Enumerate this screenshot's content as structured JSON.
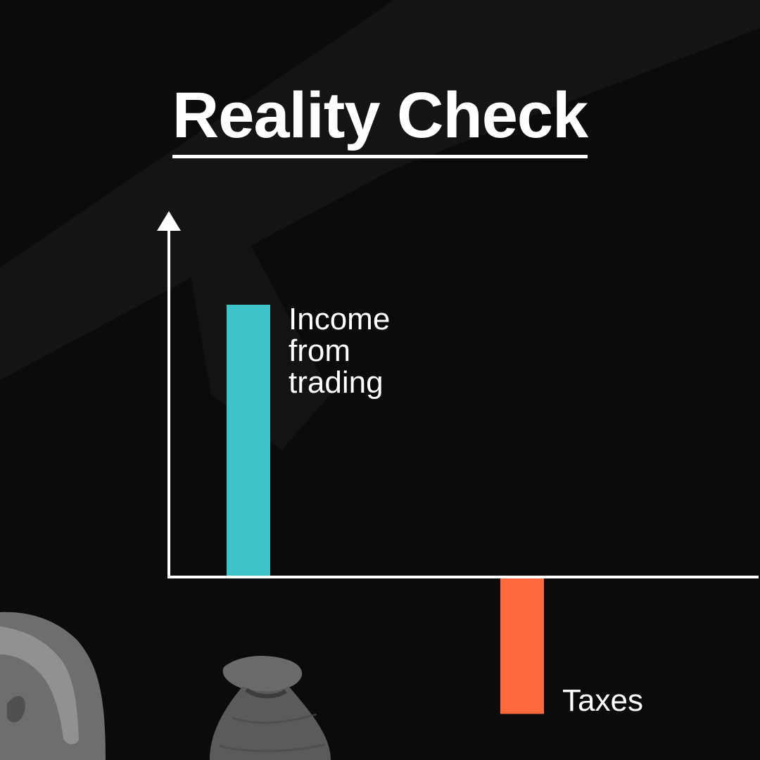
{
  "title": "Reality Check",
  "colors": {
    "background": "#0b0b0c",
    "axis": "#ffffff",
    "income_bar": "#3bc3c8",
    "taxes_bar": "#ff6a3d"
  },
  "decorations": {
    "money_bag": "money-bag-image",
    "hand": "hand-image"
  },
  "chart_data": {
    "type": "bar",
    "title": "Reality Check",
    "categories": [
      "Income\nfrom\ntrading",
      "Taxes"
    ],
    "values": [
      100,
      -50
    ],
    "xlabel": "",
    "ylabel": "",
    "ylim": [
      -70,
      135
    ],
    "grid": false,
    "legend": "none",
    "value_note": "no numeric scale printed; values are relative"
  }
}
